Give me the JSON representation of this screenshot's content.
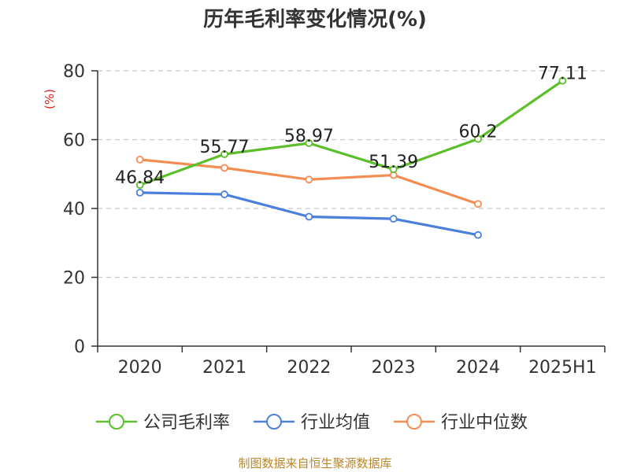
{
  "chart_data": {
    "type": "line",
    "title": "历年毛利率变化情况(%)",
    "ylabel": "(%)",
    "categories": [
      "2020",
      "2021",
      "2022",
      "2023",
      "2024",
      "2025H1"
    ],
    "y_ticks": [
      "0",
      "20",
      "40",
      "60",
      "80"
    ],
    "ylim": [
      0,
      80
    ],
    "grid": true,
    "legend_position": "bottom",
    "series": [
      {
        "name": "公司毛利率",
        "color": "#5cbf2a",
        "values": [
          46.84,
          55.77,
          58.97,
          51.39,
          60.2,
          77.11
        ],
        "labels": [
          "46.84",
          "55.77",
          "58.97",
          "51.39",
          "60.2",
          "77.11"
        ]
      },
      {
        "name": "行业均值",
        "color": "#4a7fdc",
        "values": [
          44.6,
          44.1,
          37.6,
          37.0,
          32.3,
          null
        ]
      },
      {
        "name": "行业中位数",
        "color": "#f58c52",
        "values": [
          54.2,
          51.8,
          48.4,
          49.7,
          41.3,
          null
        ]
      }
    ],
    "source": "制图数据来自恒生聚源数据库"
  }
}
